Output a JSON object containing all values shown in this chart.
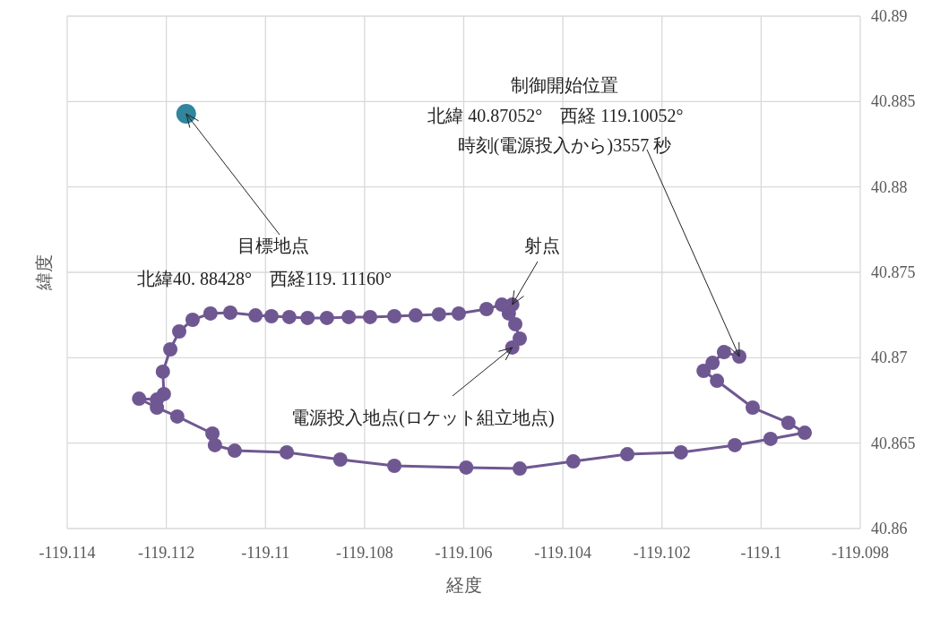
{
  "chart_data": {
    "type": "line",
    "xlabel": "経度",
    "ylabel": "緯度",
    "xlim": [
      -119.114,
      -119.098
    ],
    "xticks": [
      -119.114,
      -119.112,
      -119.11,
      -119.108,
      -119.106,
      -119.104,
      -119.102,
      -119.1,
      -119.098
    ],
    "ylim": [
      40.86,
      40.89
    ],
    "yticks": [
      40.86,
      40.865,
      40.87,
      40.875,
      40.88,
      40.885,
      40.89
    ],
    "grid": true,
    "series": [
      {
        "marker": "circle",
        "color": "#6f5891",
        "x": [
          -119.10502,
          -119.10487,
          -119.10496,
          -119.10509,
          -119.10502,
          -119.10523,
          -119.10554,
          -119.1061,
          -119.1065,
          -119.10697,
          -119.1074,
          -119.10789,
          -119.10832,
          -119.10876,
          -119.10915,
          -119.10952,
          -119.10988,
          -119.1102,
          -119.11071,
          -119.11111,
          -119.11147,
          -119.11174,
          -119.11192,
          -119.11207,
          -119.11205,
          -119.11219,
          -119.11255,
          -119.11219,
          -119.11178,
          -119.11107,
          -119.11102,
          -119.11062,
          -119.10957,
          -119.10849,
          -119.1074,
          -119.10595,
          -119.10487,
          -119.10379,
          -119.1027,
          -119.10162,
          -119.10053,
          -119.09981,
          -119.09912,
          -119.09945,
          -119.10017,
          -119.10089,
          -119.10116,
          -119.10098,
          -119.10075,
          -119.10044
        ],
        "values": [
          40.8706,
          40.87112,
          40.87196,
          40.87259,
          40.87311,
          40.87311,
          40.87285,
          40.87259,
          40.87254,
          40.87248,
          40.87243,
          40.87238,
          40.87238,
          40.87233,
          40.87233,
          40.87238,
          40.87243,
          40.87248,
          40.87264,
          40.87259,
          40.87222,
          40.87154,
          40.87049,
          40.86918,
          40.86787,
          40.86755,
          40.8676,
          40.86708,
          40.86656,
          40.86556,
          40.86488,
          40.86456,
          40.86446,
          40.86404,
          40.86367,
          40.86357,
          40.86351,
          40.86393,
          40.86435,
          40.86446,
          40.86488,
          40.86525,
          40.86561,
          40.86619,
          40.86708,
          40.86865,
          40.86923,
          40.8697,
          40.87033,
          40.87007
        ]
      },
      {
        "marker": "circle",
        "color": "#31859c",
        "x": [
          -119.1116
        ],
        "values": [
          40.88428
        ]
      }
    ],
    "annotations": [
      {
        "text": "目標地点",
        "x": -119.1116,
        "y": 40.88428
      },
      "北緯40. 88428°　西経119. 11160°",
      {
        "text": "射点",
        "x": -119.10502,
        "y": 40.87311
      },
      {
        "text": "電源投入地点(ロケット組立地点)",
        "x": -119.10502,
        "y": 40.8706
      },
      "制御開始位置",
      "北緯 40.87052°　西経 119.10052°",
      {
        "text": "時刻(電源投入から)3557 秒",
        "x": -119.10044,
        "y": 40.87007
      }
    ]
  }
}
